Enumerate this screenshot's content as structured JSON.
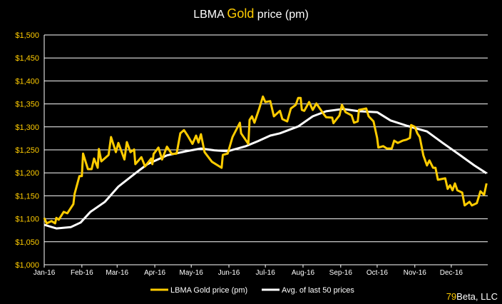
{
  "colors": {
    "gold": "#FFCC00",
    "avg": "#FFFFFF",
    "background": "#000000",
    "grid": "#FFFFFF"
  },
  "credit": {
    "accent": "79",
    "rest": "Beta, LLC"
  },
  "chart_data": {
    "type": "line",
    "title": {
      "pre": "LBMA ",
      "highlight": "Gold",
      "post": " price (pm)"
    },
    "xlabel": "",
    "ylabel": "",
    "xlim": [
      "2016-01-01",
      "2016-12-31"
    ],
    "ylim": [
      1000,
      1500
    ],
    "grid": true,
    "legend": "bottom",
    "y_ticks": [
      {
        "value": 1000,
        "label": "$1,000"
      },
      {
        "value": 1050,
        "label": "$1,050"
      },
      {
        "value": 1100,
        "label": "$1,100"
      },
      {
        "value": 1150,
        "label": "$1,150"
      },
      {
        "value": 1200,
        "label": "$1,200"
      },
      {
        "value": 1250,
        "label": "$1,250"
      },
      {
        "value": 1300,
        "label": "$1,300"
      },
      {
        "value": 1350,
        "label": "$1,350"
      },
      {
        "value": 1400,
        "label": "$1,400"
      },
      {
        "value": 1450,
        "label": "$1,450"
      },
      {
        "value": 1500,
        "label": "$1,500"
      }
    ],
    "x_ticks": [
      {
        "date": "2016-01-01",
        "label": "Jan-16"
      },
      {
        "date": "2016-02-01",
        "label": "Feb-16"
      },
      {
        "date": "2016-03-01",
        "label": "Mar-16"
      },
      {
        "date": "2016-04-01",
        "label": "Apr-16"
      },
      {
        "date": "2016-05-01",
        "label": "May-16"
      },
      {
        "date": "2016-06-01",
        "label": "Jun-16"
      },
      {
        "date": "2016-07-01",
        "label": "Jul-16"
      },
      {
        "date": "2016-08-01",
        "label": "Aug-16"
      },
      {
        "date": "2016-09-01",
        "label": "Sep-16"
      },
      {
        "date": "2016-10-01",
        "label": "Oct-16"
      },
      {
        "date": "2016-11-01",
        "label": "Nov-16"
      },
      {
        "date": "2016-12-01",
        "label": "Dec-16"
      }
    ],
    "series": [
      {
        "name": "LBMA Gold price (pm)",
        "color": "#FFCC00",
        "points": [
          [
            "2016-01-01",
            1102
          ],
          [
            "2016-01-03",
            1090
          ],
          [
            "2016-01-07",
            1095
          ],
          [
            "2016-01-10",
            1090
          ],
          [
            "2016-01-11",
            1102
          ],
          [
            "2016-01-13",
            1098
          ],
          [
            "2016-01-17",
            1115
          ],
          [
            "2016-01-20",
            1112
          ],
          [
            "2016-01-25",
            1132
          ],
          [
            "2016-01-26",
            1154
          ],
          [
            "2016-01-30",
            1193
          ],
          [
            "2016-02-01",
            1193
          ],
          [
            "2016-02-02",
            1242
          ],
          [
            "2016-02-06",
            1208
          ],
          [
            "2016-02-09",
            1208
          ],
          [
            "2016-02-11",
            1231
          ],
          [
            "2016-02-14",
            1211
          ],
          [
            "2016-02-15",
            1252
          ],
          [
            "2016-02-17",
            1225
          ],
          [
            "2016-02-23",
            1239
          ],
          [
            "2016-02-25",
            1278
          ],
          [
            "2016-02-29",
            1245
          ],
          [
            "2016-03-02",
            1265
          ],
          [
            "2016-03-07",
            1229
          ],
          [
            "2016-03-09",
            1267
          ],
          [
            "2016-03-12",
            1245
          ],
          [
            "2016-03-15",
            1251
          ],
          [
            "2016-03-16",
            1219
          ],
          [
            "2016-03-21",
            1234
          ],
          [
            "2016-03-24",
            1214
          ],
          [
            "2016-03-29",
            1231
          ],
          [
            "2016-03-30",
            1219
          ],
          [
            "2016-03-31",
            1241
          ],
          [
            "2016-04-04",
            1255
          ],
          [
            "2016-04-07",
            1229
          ],
          [
            "2016-04-11",
            1257
          ],
          [
            "2016-04-15",
            1241
          ],
          [
            "2016-04-19",
            1242
          ],
          [
            "2016-04-22",
            1286
          ],
          [
            "2016-04-25",
            1293
          ],
          [
            "2016-04-28",
            1281
          ],
          [
            "2016-05-02",
            1263
          ],
          [
            "2016-05-05",
            1281
          ],
          [
            "2016-05-07",
            1266
          ],
          [
            "2016-05-09",
            1284
          ],
          [
            "2016-05-12",
            1245
          ],
          [
            "2016-05-18",
            1224
          ],
          [
            "2016-05-26",
            1211
          ],
          [
            "2016-05-27",
            1239
          ],
          [
            "2016-05-31",
            1242
          ],
          [
            "2016-06-04",
            1278
          ],
          [
            "2016-06-10",
            1309
          ],
          [
            "2016-06-11",
            1286
          ],
          [
            "2016-06-17",
            1263
          ],
          [
            "2016-06-18",
            1315
          ],
          [
            "2016-06-20",
            1323
          ],
          [
            "2016-06-22",
            1309
          ],
          [
            "2016-06-26",
            1340
          ],
          [
            "2016-06-29",
            1366
          ],
          [
            "2016-07-01",
            1354
          ],
          [
            "2016-07-05",
            1356
          ],
          [
            "2016-07-08",
            1323
          ],
          [
            "2016-07-13",
            1335
          ],
          [
            "2016-07-15",
            1317
          ],
          [
            "2016-07-19",
            1312
          ],
          [
            "2016-07-22",
            1340
          ],
          [
            "2016-07-26",
            1348
          ],
          [
            "2016-07-28",
            1363
          ],
          [
            "2016-07-30",
            1363
          ],
          [
            "2016-07-31",
            1337
          ],
          [
            "2016-08-02",
            1335
          ],
          [
            "2016-08-06",
            1354
          ],
          [
            "2016-08-09",
            1337
          ],
          [
            "2016-08-12",
            1351
          ],
          [
            "2016-08-18",
            1328
          ],
          [
            "2016-08-20",
            1321
          ],
          [
            "2016-08-25",
            1320
          ],
          [
            "2016-08-26",
            1308
          ],
          [
            "2016-08-31",
            1325
          ],
          [
            "2016-09-02",
            1348
          ],
          [
            "2016-09-05",
            1332
          ],
          [
            "2016-09-10",
            1325
          ],
          [
            "2016-09-12",
            1309
          ],
          [
            "2016-09-15",
            1312
          ],
          [
            "2016-09-16",
            1337
          ],
          [
            "2016-09-22",
            1340
          ],
          [
            "2016-09-24",
            1323
          ],
          [
            "2016-09-28",
            1312
          ],
          [
            "2016-10-01",
            1276
          ],
          [
            "2016-10-02",
            1255
          ],
          [
            "2016-10-06",
            1258
          ],
          [
            "2016-10-09",
            1253
          ],
          [
            "2016-10-13",
            1253
          ],
          [
            "2016-10-15",
            1270
          ],
          [
            "2016-10-18",
            1265
          ],
          [
            "2016-10-22",
            1270
          ],
          [
            "2016-10-25",
            1272
          ],
          [
            "2016-10-28",
            1276
          ],
          [
            "2016-10-29",
            1304
          ],
          [
            "2016-11-01",
            1300
          ],
          [
            "2016-11-03",
            1286
          ],
          [
            "2016-11-05",
            1278
          ],
          [
            "2016-11-08",
            1238
          ],
          [
            "2016-11-11",
            1216
          ],
          [
            "2016-11-13",
            1227
          ],
          [
            "2016-11-16",
            1211
          ],
          [
            "2016-11-18",
            1211
          ],
          [
            "2016-11-20",
            1185
          ],
          [
            "2016-11-26",
            1188
          ],
          [
            "2016-11-28",
            1165
          ],
          [
            "2016-11-30",
            1173
          ],
          [
            "2016-12-02",
            1162
          ],
          [
            "2016-12-04",
            1177
          ],
          [
            "2016-12-06",
            1162
          ],
          [
            "2016-12-10",
            1157
          ],
          [
            "2016-12-12",
            1129
          ],
          [
            "2016-12-16",
            1137
          ],
          [
            "2016-12-18",
            1129
          ],
          [
            "2016-12-22",
            1134
          ],
          [
            "2016-12-25",
            1160
          ],
          [
            "2016-12-28",
            1152
          ],
          [
            "2016-12-30",
            1177
          ]
        ]
      },
      {
        "name": "Avg. of last 50 prices",
        "color": "#FFFFFF",
        "points": [
          [
            "2016-01-01",
            1087
          ],
          [
            "2016-01-11",
            1079
          ],
          [
            "2016-01-23",
            1082
          ],
          [
            "2016-01-31",
            1092
          ],
          [
            "2016-02-08",
            1115
          ],
          [
            "2016-02-20",
            1137
          ],
          [
            "2016-03-02",
            1170
          ],
          [
            "2016-03-16",
            1199
          ],
          [
            "2016-03-26",
            1219
          ],
          [
            "2016-04-11",
            1238
          ],
          [
            "2016-04-27",
            1247
          ],
          [
            "2016-05-09",
            1253
          ],
          [
            "2016-05-20",
            1249
          ],
          [
            "2016-05-31",
            1247
          ],
          [
            "2016-06-15",
            1258
          ],
          [
            "2016-06-25",
            1269
          ],
          [
            "2016-07-05",
            1281
          ],
          [
            "2016-07-13",
            1286
          ],
          [
            "2016-07-28",
            1301
          ],
          [
            "2016-08-09",
            1323
          ],
          [
            "2016-08-20",
            1334
          ],
          [
            "2016-09-03",
            1339
          ],
          [
            "2016-09-16",
            1334
          ],
          [
            "2016-10-01",
            1332
          ],
          [
            "2016-10-12",
            1314
          ],
          [
            "2016-10-26",
            1302
          ],
          [
            "2016-11-11",
            1290
          ],
          [
            "2016-11-24",
            1265
          ],
          [
            "2016-12-08",
            1239
          ],
          [
            "2016-12-20",
            1216
          ],
          [
            "2016-12-30",
            1199
          ]
        ]
      }
    ]
  }
}
